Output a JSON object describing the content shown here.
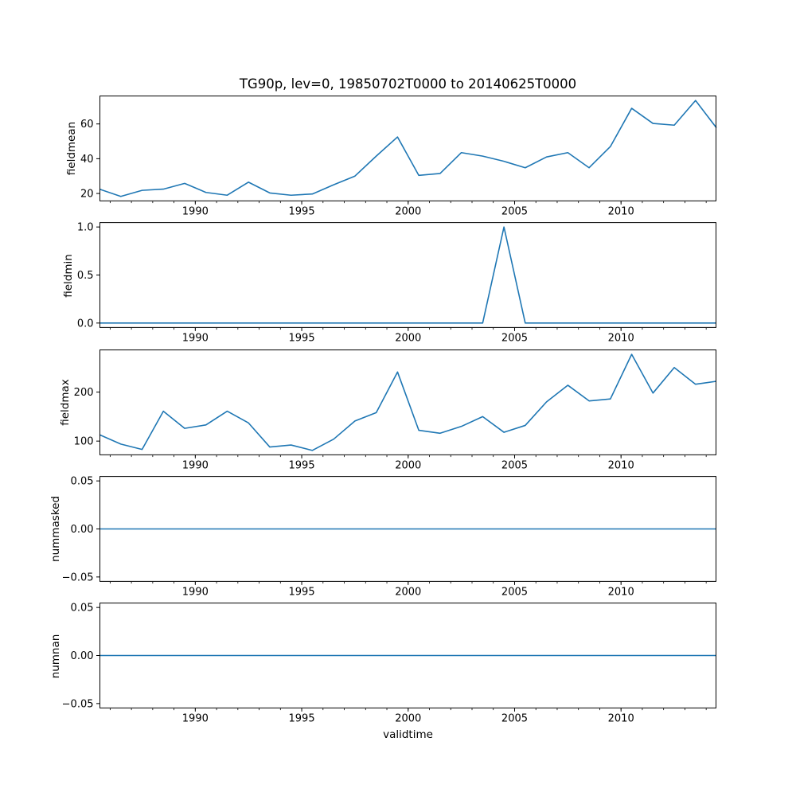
{
  "chart": {
    "title": "TG90p, lev=0, 19850702T0000 to 20140625T0000",
    "xlabel": "validtime",
    "xlim": [
      1985.5,
      2014.48
    ],
    "xticks": [
      1990,
      1995,
      2000,
      2005,
      2010
    ],
    "xtick_labels": [
      "1990",
      "1995",
      "2000",
      "2005",
      "2010"
    ],
    "minor_tick_start": 1986,
    "minor_tick_end": 2014,
    "grid": false,
    "legend": "none",
    "line_color": "#1f77b4",
    "axis_color": "#000000",
    "background_color": "#ffffff"
  },
  "chart_data": [
    {
      "type": "line",
      "name": "fieldmean",
      "ylabel": "fieldmean",
      "ylim": [
        15.5,
        76.3
      ],
      "yticks": [
        20,
        40,
        60
      ],
      "ytick_labels": [
        "20",
        "40",
        "60"
      ],
      "line_color": "#1f77b4",
      "x": [
        1985.5,
        1986.5,
        1987.5,
        1988.5,
        1989.5,
        1990.5,
        1991.5,
        1992.5,
        1993.5,
        1994.5,
        1995.5,
        1996.5,
        1997.5,
        1998.5,
        1999.5,
        2000.5,
        2001.5,
        2002.5,
        2003.5,
        2004.5,
        2005.5,
        2006.5,
        2007.5,
        2008.5,
        2009.5,
        2010.5,
        2011.5,
        2012.5,
        2013.5,
        2014.48
      ],
      "values": [
        22.5,
        18.3,
        21.8,
        22.5,
        25.8,
        20.6,
        19.0,
        26.5,
        20.3,
        19.0,
        19.7,
        25.0,
        30.0,
        41.5,
        52.5,
        30.4,
        31.5,
        43.5,
        41.5,
        38.5,
        34.8,
        41.0,
        43.5,
        34.8,
        47.0,
        69.0,
        60.3,
        59.3,
        73.5,
        57.8
      ]
    },
    {
      "type": "line",
      "name": "fieldmin",
      "ylabel": "fieldmin",
      "ylim": [
        -0.05,
        1.05
      ],
      "yticks": [
        0.0,
        0.5,
        1.0
      ],
      "ytick_labels": [
        "0.0",
        "0.5",
        "1.0"
      ],
      "line_color": "#1f77b4",
      "x": [
        1985.5,
        1986.5,
        1987.5,
        1988.5,
        1989.5,
        1990.5,
        1991.5,
        1992.5,
        1993.5,
        1994.5,
        1995.5,
        1996.5,
        1997.5,
        1998.5,
        1999.5,
        2000.5,
        2001.5,
        2002.5,
        2003.5,
        2004.5,
        2005.5,
        2006.5,
        2007.5,
        2008.5,
        2009.5,
        2010.5,
        2011.5,
        2012.5,
        2013.5,
        2014.48
      ],
      "values": [
        0,
        0,
        0,
        0,
        0,
        0,
        0,
        0,
        0,
        0,
        0,
        0,
        0,
        0,
        0,
        0,
        0,
        0,
        0,
        1.0,
        0,
        0,
        0,
        0,
        0,
        0,
        0,
        0,
        0,
        0
      ]
    },
    {
      "type": "line",
      "name": "fieldmax",
      "ylabel": "fieldmax",
      "ylim": [
        71.2,
        286.8
      ],
      "yticks": [
        100,
        200
      ],
      "ytick_labels": [
        "100",
        "200"
      ],
      "line_color": "#1f77b4",
      "x": [
        1985.5,
        1986.5,
        1987.5,
        1988.5,
        1989.5,
        1990.5,
        1991.5,
        1992.5,
        1993.5,
        1994.5,
        1995.5,
        1996.5,
        1997.5,
        1998.5,
        1999.5,
        2000.5,
        2001.5,
        2002.5,
        2003.5,
        2004.5,
        2005.5,
        2006.5,
        2007.5,
        2008.5,
        2009.5,
        2010.5,
        2011.5,
        2012.5,
        2013.5,
        2014.48
      ],
      "values": [
        113,
        94,
        83,
        161,
        126,
        133,
        161,
        137,
        88,
        92,
        81,
        104,
        141,
        158,
        241,
        122,
        116,
        130,
        150,
        118,
        132,
        180,
        214,
        182,
        186,
        277,
        198,
        250,
        216,
        222
      ]
    },
    {
      "type": "line",
      "name": "nummasked",
      "ylabel": "nummasked",
      "ylim": [
        -0.055,
        0.055
      ],
      "yticks": [
        0.05,
        0.0,
        -0.05
      ],
      "ytick_labels": [
        "0.05",
        "0.00",
        "−0.05"
      ],
      "line_color": "#1f77b4",
      "x": [
        1985.5,
        1986.5,
        1987.5,
        1988.5,
        1989.5,
        1990.5,
        1991.5,
        1992.5,
        1993.5,
        1994.5,
        1995.5,
        1996.5,
        1997.5,
        1998.5,
        1999.5,
        2000.5,
        2001.5,
        2002.5,
        2003.5,
        2004.5,
        2005.5,
        2006.5,
        2007.5,
        2008.5,
        2009.5,
        2010.5,
        2011.5,
        2012.5,
        2013.5,
        2014.48
      ],
      "values": [
        0,
        0,
        0,
        0,
        0,
        0,
        0,
        0,
        0,
        0,
        0,
        0,
        0,
        0,
        0,
        0,
        0,
        0,
        0,
        0,
        0,
        0,
        0,
        0,
        0,
        0,
        0,
        0,
        0,
        0
      ]
    },
    {
      "type": "line",
      "name": "numnan",
      "ylabel": "numnan",
      "ylim": [
        -0.055,
        0.055
      ],
      "yticks": [
        0.05,
        0.0,
        -0.05
      ],
      "ytick_labels": [
        "0.05",
        "0.00",
        "−0.05"
      ],
      "line_color": "#1f77b4",
      "x": [
        1985.5,
        1986.5,
        1987.5,
        1988.5,
        1989.5,
        1990.5,
        1991.5,
        1992.5,
        1993.5,
        1994.5,
        1995.5,
        1996.5,
        1997.5,
        1998.5,
        1999.5,
        2000.5,
        2001.5,
        2002.5,
        2003.5,
        2004.5,
        2005.5,
        2006.5,
        2007.5,
        2008.5,
        2009.5,
        2010.5,
        2011.5,
        2012.5,
        2013.5,
        2014.48
      ],
      "values": [
        0,
        0,
        0,
        0,
        0,
        0,
        0,
        0,
        0,
        0,
        0,
        0,
        0,
        0,
        0,
        0,
        0,
        0,
        0,
        0,
        0,
        0,
        0,
        0,
        0,
        0,
        0,
        0,
        0,
        0
      ]
    }
  ]
}
